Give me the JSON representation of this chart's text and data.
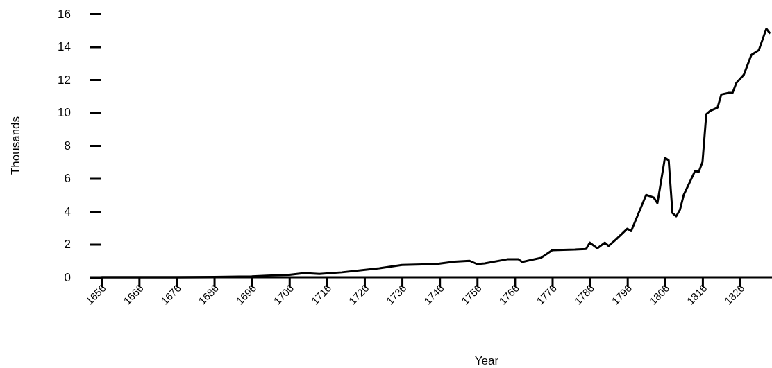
{
  "chart_data": {
    "type": "line",
    "xlabel": "Year",
    "ylabel": "Thousands",
    "x": [
      1656,
      1666,
      1676,
      1686,
      1696,
      1700,
      1706,
      1710,
      1714,
      1720,
      1730,
      1736,
      1745,
      1750,
      1754,
      1756,
      1758,
      1764,
      1767,
      1768,
      1773,
      1776,
      1782,
      1785,
      1786,
      1788,
      1790,
      1791,
      1793,
      1796,
      1797,
      1801,
      1803,
      1804,
      1806,
      1807,
      1808,
      1809,
      1810,
      1811,
      1814,
      1815,
      1816,
      1817,
      1818,
      1820,
      1821,
      1823,
      1824,
      1825,
      1827,
      1829,
      1831,
      1833,
      1834
    ],
    "series": [
      {
        "color": "#000000",
        "values": [
          0,
          0,
          0,
          0.02,
          0.05,
          0.1,
          0.15,
          0.25,
          0.2,
          0.3,
          0.55,
          0.75,
          0.8,
          0.95,
          1.0,
          0.8,
          0.84,
          1.09,
          1.09,
          0.93,
          1.18,
          1.64,
          1.68,
          1.72,
          2.1,
          1.76,
          2.1,
          1.9,
          2.3,
          2.95,
          2.8,
          5.0,
          4.85,
          4.5,
          7.25,
          7.1,
          3.9,
          3.7,
          4.1,
          5.0,
          6.45,
          6.4,
          7.0,
          9.9,
          10.1,
          10.3,
          11.1,
          11.2,
          11.2,
          11.8,
          12.3,
          13.5,
          13.8,
          15.1,
          14.8
        ]
      }
    ],
    "xlim": [
      1653,
      1834.5
    ],
    "xticks": [
      1656,
      1666,
      1676,
      1686,
      1696,
      1706,
      1716,
      1726,
      1736,
      1746,
      1756,
      1766,
      1776,
      1786,
      1796,
      1806,
      1816,
      1826
    ],
    "ylim": [
      0,
      16
    ],
    "yticks": [
      0,
      2,
      4,
      6,
      8,
      10,
      12,
      14,
      16
    ],
    "grid": false,
    "marker": "none",
    "line_style": "solid"
  }
}
